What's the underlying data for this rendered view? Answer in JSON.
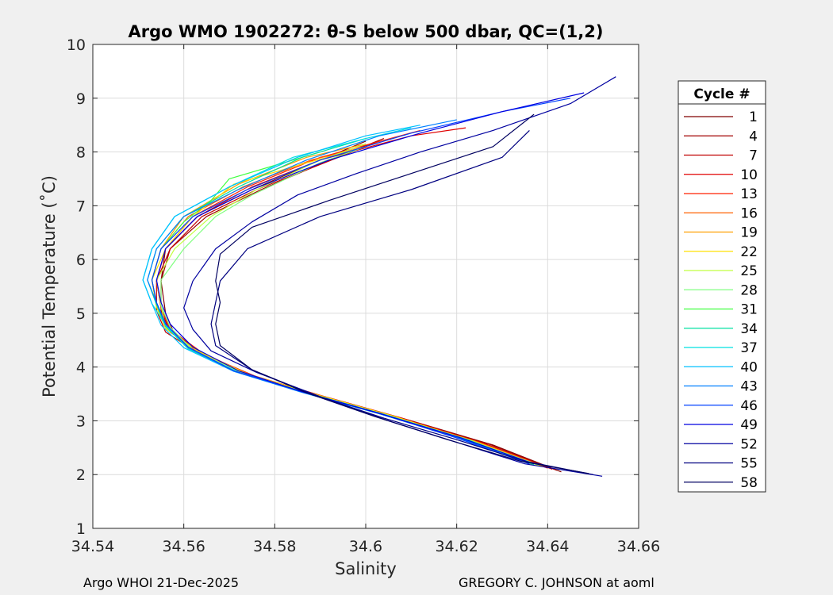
{
  "chart_data": {
    "type": "line",
    "title": "Argo WMO 1902272: θ-S below 500 dbar,  QC=(1,2)",
    "xlabel": "Salinity",
    "ylabel": "Potential Temperature (˚C)",
    "xlim": [
      34.54,
      34.66
    ],
    "ylim": [
      1,
      10
    ],
    "xticks": [
      34.54,
      34.56,
      34.58,
      34.6,
      34.62,
      34.64,
      34.66
    ],
    "xtick_labels": [
      "34.54",
      "34.56",
      "34.58",
      "34.6",
      "34.62",
      "34.64",
      "34.66"
    ],
    "yticks": [
      1,
      2,
      3,
      4,
      5,
      6,
      7,
      8,
      9,
      10
    ],
    "ytick_labels": [
      "1",
      "2",
      "3",
      "4",
      "5",
      "6",
      "7",
      "8",
      "9",
      "10"
    ],
    "grid": true,
    "legend_title": "Cycle #",
    "legend_position": "outside-right",
    "series": [
      {
        "name": "1",
        "color": "#800000",
        "x": [
          34.643,
          34.628,
          34.61,
          34.593,
          34.578,
          34.566,
          34.558,
          34.556,
          34.555,
          34.556,
          34.563,
          34.575,
          34.59,
          34.6
        ],
        "y": [
          2.05,
          2.55,
          3.0,
          3.4,
          3.75,
          4.15,
          4.6,
          5.0,
          5.6,
          6.2,
          6.8,
          7.3,
          7.85,
          8.2
        ]
      },
      {
        "name": "4",
        "color": "#a00000",
        "x": [
          34.642,
          34.627,
          34.609,
          34.592,
          34.577,
          34.565,
          34.557,
          34.555,
          34.555,
          34.557,
          34.565,
          34.577,
          34.592,
          34.604
        ],
        "y": [
          2.08,
          2.57,
          3.02,
          3.42,
          3.78,
          4.2,
          4.65,
          5.05,
          5.6,
          6.2,
          6.8,
          7.3,
          7.85,
          8.25
        ]
      },
      {
        "name": "7",
        "color": "#c00000",
        "x": [
          34.641,
          34.626,
          34.608,
          34.591,
          34.576,
          34.564,
          34.556,
          34.554,
          34.554,
          34.557,
          34.564,
          34.576,
          34.591,
          34.603
        ],
        "y": [
          2.1,
          2.58,
          3.04,
          3.44,
          3.8,
          4.22,
          4.65,
          5.05,
          5.6,
          6.2,
          6.8,
          7.3,
          7.8,
          8.2
        ]
      },
      {
        "name": "10",
        "color": "#e00000",
        "x": [
          34.64,
          34.625,
          34.608,
          34.591,
          34.576,
          34.564,
          34.557,
          34.555,
          34.554,
          34.556,
          34.563,
          34.575,
          34.59,
          34.61,
          34.622
        ],
        "y": [
          2.12,
          2.6,
          3.05,
          3.45,
          3.82,
          4.25,
          4.7,
          5.1,
          5.6,
          6.2,
          6.8,
          7.35,
          7.85,
          8.3,
          8.45
        ]
      },
      {
        "name": "13",
        "color": "#ff2000",
        "x": [
          34.64,
          34.625,
          34.607,
          34.59,
          34.575,
          34.564,
          34.557,
          34.555,
          34.554,
          34.556,
          34.562,
          34.574,
          34.59,
          34.612
        ],
        "y": [
          2.13,
          2.6,
          3.06,
          3.46,
          3.83,
          4.27,
          4.7,
          5.1,
          5.6,
          6.2,
          6.8,
          7.35,
          7.9,
          8.4
        ]
      },
      {
        "name": "16",
        "color": "#ff6000",
        "x": [
          34.639,
          34.624,
          34.606,
          34.59,
          34.575,
          34.563,
          34.556,
          34.554,
          34.553,
          34.555,
          34.561,
          34.573,
          34.588,
          34.6
        ],
        "y": [
          2.15,
          2.62,
          3.07,
          3.47,
          3.85,
          4.28,
          4.72,
          5.12,
          5.62,
          6.2,
          6.8,
          7.35,
          7.85,
          8.1
        ]
      },
      {
        "name": "19",
        "color": "#ffa000",
        "x": [
          34.639,
          34.624,
          34.606,
          34.589,
          34.574,
          34.563,
          34.556,
          34.554,
          34.553,
          34.555,
          34.56,
          34.572,
          34.587,
          34.6
        ],
        "y": [
          2.15,
          2.62,
          3.08,
          3.48,
          3.86,
          4.3,
          4.72,
          5.12,
          5.62,
          6.2,
          6.8,
          7.4,
          7.9,
          8.15
        ]
      },
      {
        "name": "22",
        "color": "#ffe000",
        "x": [
          34.638,
          34.623,
          34.606,
          34.589,
          34.574,
          34.563,
          34.556,
          34.554,
          34.553,
          34.556,
          34.562,
          34.571,
          34.585,
          34.6
        ],
        "y": [
          2.17,
          2.63,
          3.09,
          3.49,
          3.87,
          4.3,
          4.72,
          5.12,
          5.62,
          6.2,
          6.8,
          7.4,
          7.75,
          8.1
        ]
      },
      {
        "name": "25",
        "color": "#c0ff40",
        "x": [
          34.638,
          34.623,
          34.605,
          34.588,
          34.573,
          34.562,
          34.556,
          34.555,
          34.554,
          34.558,
          34.566,
          34.576,
          34.59,
          34.6
        ],
        "y": [
          2.17,
          2.64,
          3.1,
          3.5,
          3.88,
          4.32,
          4.74,
          5.14,
          5.62,
          6.2,
          6.8,
          7.3,
          7.85,
          8.15
        ]
      },
      {
        "name": "28",
        "color": "#80ff80",
        "x": [
          34.638,
          34.622,
          34.605,
          34.588,
          34.573,
          34.562,
          34.557,
          34.555,
          34.555,
          34.56,
          34.567,
          34.575,
          34.59,
          34.6
        ],
        "y": [
          2.18,
          2.65,
          3.1,
          3.5,
          3.88,
          4.32,
          4.74,
          5.14,
          5.62,
          6.2,
          6.8,
          7.2,
          7.8,
          8.1
        ]
      },
      {
        "name": "31",
        "color": "#40ff40",
        "x": [
          34.637,
          34.622,
          34.604,
          34.587,
          34.572,
          34.561,
          34.556,
          34.554,
          34.553,
          34.555,
          34.56,
          34.566,
          34.57,
          34.58,
          34.59
        ],
        "y": [
          2.18,
          2.65,
          3.11,
          3.51,
          3.9,
          4.34,
          4.76,
          5.16,
          5.62,
          6.2,
          6.7,
          7.1,
          7.5,
          7.75,
          8.0
        ]
      },
      {
        "name": "34",
        "color": "#00e0a0",
        "x": [
          34.637,
          34.622,
          34.604,
          34.587,
          34.572,
          34.561,
          34.556,
          34.554,
          34.552,
          34.554,
          34.56,
          34.572,
          34.586,
          34.6
        ],
        "y": [
          2.19,
          2.66,
          3.12,
          3.52,
          3.9,
          4.34,
          4.76,
          5.16,
          5.62,
          6.2,
          6.8,
          7.35,
          7.9,
          8.25
        ]
      },
      {
        "name": "37",
        "color": "#00e0e0",
        "x": [
          34.637,
          34.621,
          34.604,
          34.587,
          34.572,
          34.561,
          34.556,
          34.553,
          34.551,
          34.553,
          34.558,
          34.57,
          34.584,
          34.6,
          34.61
        ],
        "y": [
          2.19,
          2.66,
          3.12,
          3.52,
          3.9,
          4.35,
          4.78,
          5.18,
          5.62,
          6.2,
          6.8,
          7.35,
          7.9,
          8.25,
          8.45
        ]
      },
      {
        "name": "40",
        "color": "#00c0ff",
        "x": [
          34.636,
          34.621,
          34.603,
          34.586,
          34.571,
          34.56,
          34.555,
          34.553,
          34.551,
          34.553,
          34.558,
          34.57,
          34.585,
          34.6,
          34.612
        ],
        "y": [
          2.2,
          2.67,
          3.13,
          3.53,
          3.92,
          4.36,
          4.78,
          5.18,
          5.62,
          6.2,
          6.8,
          7.35,
          7.9,
          8.3,
          8.5
        ]
      },
      {
        "name": "43",
        "color": "#0080ff",
        "x": [
          34.636,
          34.621,
          34.603,
          34.586,
          34.571,
          34.561,
          34.556,
          34.554,
          34.552,
          34.554,
          34.56,
          34.572,
          34.587,
          34.603,
          34.62
        ],
        "y": [
          2.2,
          2.67,
          3.13,
          3.53,
          3.92,
          4.36,
          4.8,
          5.2,
          5.62,
          6.2,
          6.8,
          7.3,
          7.85,
          8.3,
          8.6
        ]
      },
      {
        "name": "46",
        "color": "#0040ff",
        "x": [
          34.636,
          34.62,
          34.603,
          34.586,
          34.571,
          34.561,
          34.556,
          34.554,
          34.553,
          34.555,
          34.562,
          34.574,
          34.59,
          34.61,
          34.63,
          34.645
        ],
        "y": [
          2.2,
          2.68,
          3.14,
          3.54,
          3.93,
          4.37,
          4.8,
          5.2,
          5.62,
          6.2,
          6.8,
          7.3,
          7.85,
          8.35,
          8.75,
          9.0
        ]
      },
      {
        "name": "49",
        "color": "#0000e0",
        "x": [
          34.637,
          34.621,
          34.603,
          34.586,
          34.572,
          34.562,
          34.557,
          34.555,
          34.554,
          34.556,
          34.563,
          34.575,
          34.592,
          34.612,
          34.63,
          34.648
        ],
        "y": [
          2.2,
          2.68,
          3.14,
          3.54,
          3.93,
          4.37,
          4.8,
          5.2,
          5.62,
          6.2,
          6.8,
          7.3,
          7.85,
          8.35,
          8.75,
          9.1
        ]
      },
      {
        "name": "52",
        "color": "#0000a0",
        "x": [
          34.652,
          34.635,
          34.62,
          34.605,
          34.59,
          34.576,
          34.566,
          34.562,
          34.56,
          34.562,
          34.567,
          34.575,
          34.585,
          34.598,
          34.612,
          34.628,
          34.645,
          34.655
        ],
        "y": [
          1.97,
          2.2,
          2.6,
          3.0,
          3.45,
          3.9,
          4.3,
          4.7,
          5.1,
          5.6,
          6.2,
          6.7,
          7.2,
          7.6,
          8.0,
          8.4,
          8.9,
          9.4
        ]
      },
      {
        "name": "55",
        "color": "#000080",
        "x": [
          34.65,
          34.635,
          34.62,
          34.604,
          34.588,
          34.575,
          34.567,
          34.566,
          34.567,
          34.568,
          34.574,
          34.59,
          34.61,
          34.63,
          34.636
        ],
        "y": [
          2.0,
          2.25,
          2.65,
          3.05,
          3.5,
          3.95,
          4.4,
          4.8,
          5.2,
          5.6,
          6.2,
          6.8,
          7.3,
          7.9,
          8.4
        ]
      },
      {
        "name": "58",
        "color": "#000060",
        "x": [
          34.649,
          34.634,
          34.618,
          34.602,
          34.587,
          34.575,
          34.568,
          34.567,
          34.568,
          34.567,
          34.568,
          34.575,
          34.592,
          34.61,
          34.628,
          34.637
        ],
        "y": [
          2.02,
          2.25,
          2.65,
          3.08,
          3.52,
          3.95,
          4.4,
          4.8,
          5.2,
          5.6,
          6.1,
          6.6,
          7.1,
          7.6,
          8.1,
          8.7
        ]
      }
    ]
  },
  "footer": {
    "left": "Argo WHOI 21-Dec-2025",
    "right": "GREGORY C. JOHNSON at aoml"
  }
}
